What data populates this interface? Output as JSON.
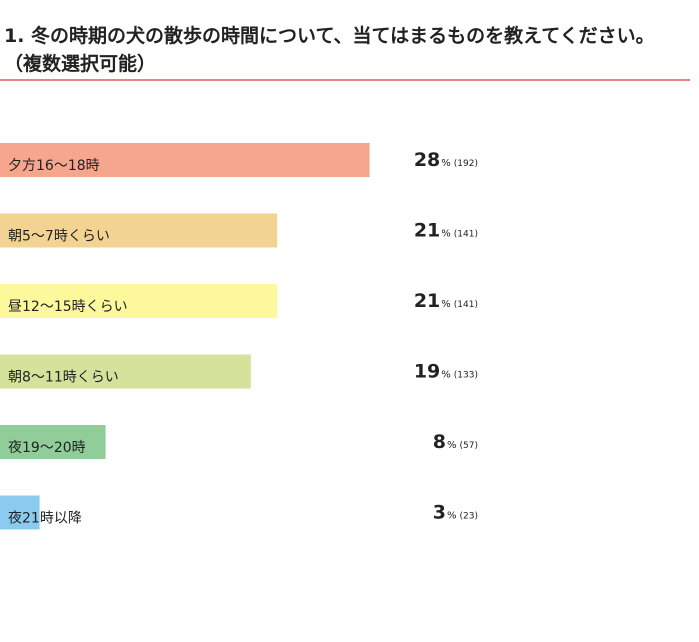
{
  "chart_data": {
    "type": "bar",
    "title": "1. 冬の時期の犬の散歩の時間について、当てはまるものを教えてください。",
    "subtitle": "（複数選択可能）",
    "categories": [
      "夕方16〜18時",
      "朝5〜7時くらい",
      "昼12〜15時くらい",
      "朝8〜11時くらい",
      "夜19〜20時",
      "夜21時以降"
    ],
    "values": [
      28,
      21,
      21,
      19,
      8,
      3
    ],
    "unit": "%",
    "count_labels": [
      "(192)",
      "(141)",
      "(141)",
      "(133)",
      "(57)",
      "(23)"
    ],
    "colors": [
      "#f5a68c",
      "#f3d391",
      "#fdf89b",
      "#d4e29c",
      "#90cd99",
      "#8ccbf0"
    ]
  }
}
